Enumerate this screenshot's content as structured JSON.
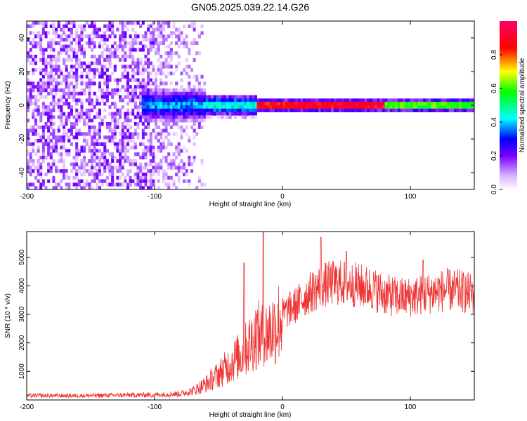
{
  "title": "GN05.2025.039.22.14.G26",
  "colors": {
    "snr_line": "#ee3333",
    "frame": "#000000"
  },
  "chart_data": [
    {
      "type": "heatmap",
      "xlabel": "Height of straight line (km)",
      "ylabel": "Frequency (Hz)",
      "xlim": [
        -200,
        150
      ],
      "ylim": [
        -50,
        50
      ],
      "xticks": [
        -200,
        -100,
        0,
        100
      ],
      "yticks": [
        -40,
        -20,
        0,
        20,
        40
      ],
      "colorbar": {
        "label": "Normalized spectral amplitude",
        "range": [
          0,
          1
        ],
        "ticks": [
          "0.0",
          "0.2",
          "0.4",
          "0.6",
          "0.8"
        ],
        "colormap": "white-purple-blue-cyan-green-yellow-red-magenta"
      },
      "features": {
        "noise_region_x": [
          -200,
          -60
        ],
        "signal_ridge_frequency": 0,
        "peak_amplitude_region_x": [
          -20,
          80
        ]
      },
      "grid": false
    },
    {
      "type": "line",
      "xlabel": "Height of straight line (km)",
      "ylabel": "SNR (10 * v/v)",
      "xlim": [
        -200,
        150
      ],
      "ylim": [
        0,
        5900
      ],
      "xticks": [
        -200,
        -100,
        0,
        100
      ],
      "yticks": [
        1000,
        2000,
        3000,
        4000,
        5000
      ],
      "series": [
        {
          "x": [
            -200,
            -180,
            -160,
            -140,
            -120,
            -100,
            -80,
            -70,
            -60,
            -50,
            -40,
            -30,
            -25,
            -20,
            -15,
            -10,
            -5,
            0,
            10,
            20,
            30,
            40,
            50,
            60,
            70,
            80,
            90,
            100,
            110,
            120,
            130,
            140,
            150
          ],
          "values": [
            150,
            150,
            150,
            160,
            170,
            180,
            220,
            320,
            550,
            900,
            1300,
            1700,
            2000,
            2300,
            2200,
            2400,
            2600,
            3000,
            3300,
            3700,
            4000,
            4100,
            4100,
            4000,
            3900,
            3700,
            3600,
            3600,
            3700,
            3800,
            3850,
            3800,
            3700
          ]
        }
      ],
      "spikes": [
        {
          "x": -30,
          "y": 4800
        },
        {
          "x": -15,
          "y": 5900
        },
        {
          "x": 30,
          "y": 5700
        },
        {
          "x": 50,
          "y": 5200
        },
        {
          "x": 110,
          "y": 4900
        }
      ],
      "grid": false
    }
  ]
}
